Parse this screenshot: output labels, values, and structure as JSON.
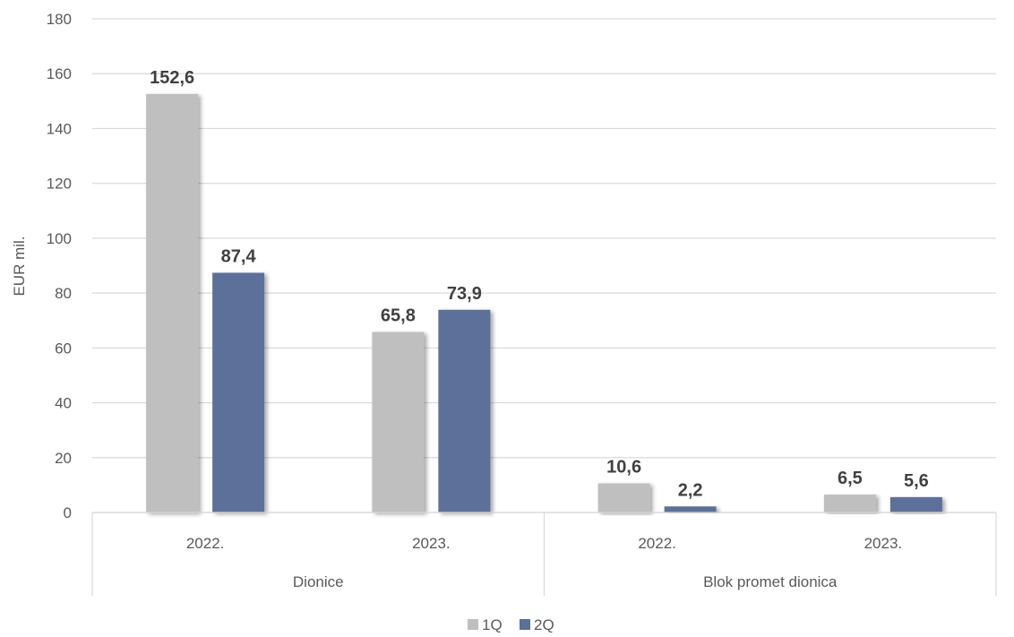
{
  "chart_data": {
    "type": "bar",
    "ylabel": "EUR mil.",
    "ylim": [
      0,
      180
    ],
    "yticks": [
      0,
      20,
      40,
      60,
      80,
      100,
      120,
      140,
      160,
      180
    ],
    "grid": true,
    "legend_position": "bottom",
    "groups": [
      {
        "label": "Dionice",
        "categories": [
          "2022.",
          "2023."
        ]
      },
      {
        "label": "Blok promet dionica",
        "categories": [
          "2022.",
          "2023."
        ]
      }
    ],
    "series": [
      {
        "name": "1Q",
        "color": "#bfbfbf",
        "values": [
          152.6,
          65.8,
          10.6,
          6.5
        ],
        "labels": [
          "152,6",
          "65,8",
          "10,6",
          "6,5"
        ]
      },
      {
        "name": "2Q",
        "color": "#5b7099",
        "values": [
          87.4,
          73.9,
          2.2,
          5.6
        ],
        "labels": [
          "87,4",
          "73,9",
          "2,2",
          "5,6"
        ]
      }
    ]
  }
}
